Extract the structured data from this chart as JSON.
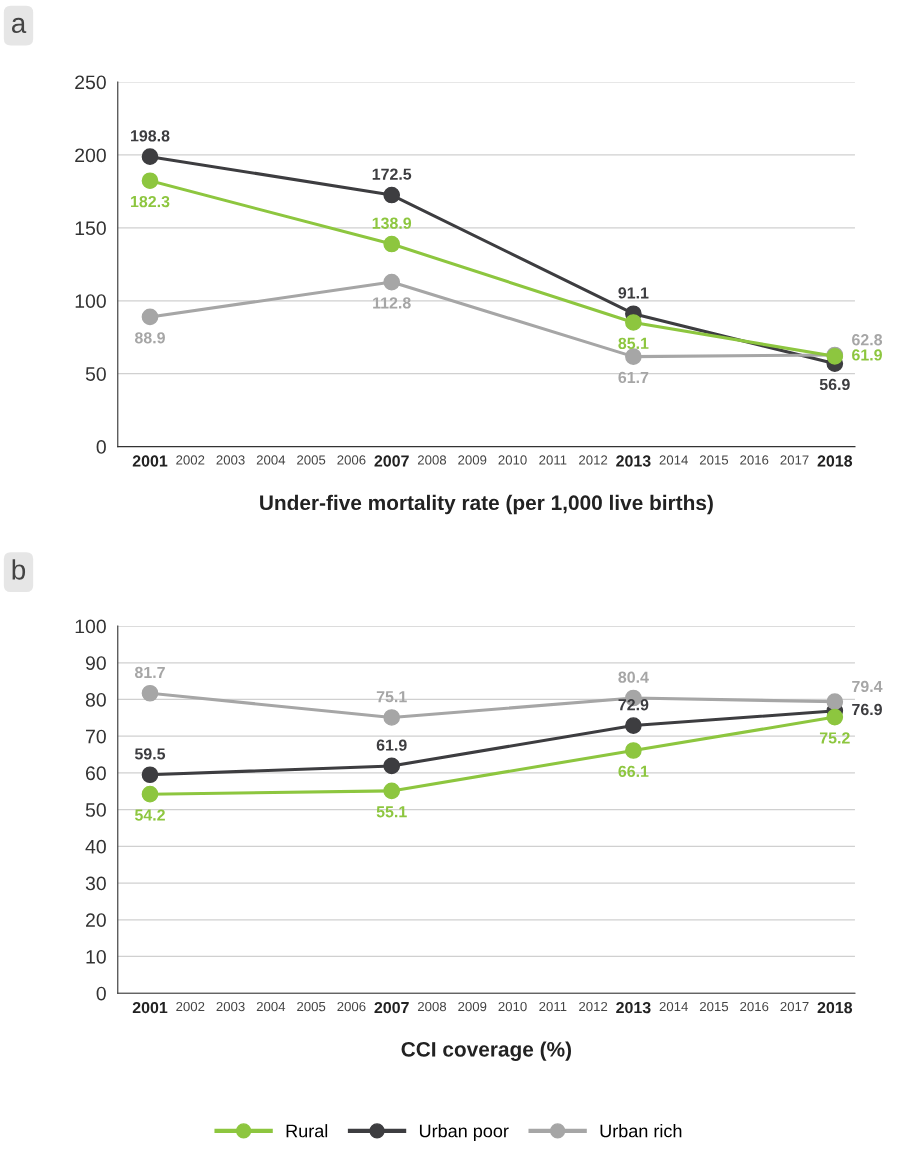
{
  "chart_data": [
    {
      "type": "line",
      "annotations": [
        "a"
      ],
      "xlabel": "Under-five mortality rate (per 1,000 live births)",
      "x": [
        2001,
        2007,
        2013,
        2018
      ],
      "xlim": [
        2000.2,
        2018.5
      ],
      "xticks": [
        2001,
        2002,
        2003,
        2004,
        2005,
        2006,
        2007,
        2008,
        2009,
        2010,
        2011,
        2012,
        2013,
        2014,
        2015,
        2016,
        2017,
        2018
      ],
      "ylim": [
        0,
        250
      ],
      "yticks": [
        0,
        50,
        100,
        150,
        200,
        250
      ],
      "grid": "y",
      "marker": "circle",
      "line_style": "solid",
      "data_labels": true,
      "legend": "bottom",
      "series": [
        {
          "name": "Rural",
          "color": "#8dc63f",
          "values": [
            182.3,
            138.9,
            85.1,
            61.9
          ]
        },
        {
          "name": "Urban poor",
          "color": "#3d3d40",
          "values": [
            198.8,
            172.5,
            91.1,
            56.9
          ]
        },
        {
          "name": "Urban rich",
          "color": "#a6a6a6",
          "values": [
            88.9,
            112.8,
            61.7,
            62.8
          ]
        }
      ]
    },
    {
      "type": "line",
      "annotations": [
        "b"
      ],
      "xlabel": "CCI coverage (%)",
      "x": [
        2001,
        2007,
        2013,
        2018
      ],
      "xlim": [
        2000.2,
        2018.5
      ],
      "xticks": [
        2001,
        2002,
        2003,
        2004,
        2005,
        2006,
        2007,
        2008,
        2009,
        2010,
        2011,
        2012,
        2013,
        2014,
        2015,
        2016,
        2017,
        2018
      ],
      "ylim": [
        0,
        100
      ],
      "yticks": [
        0,
        10,
        20,
        30,
        40,
        50,
        60,
        70,
        80,
        90,
        100
      ],
      "grid": "y",
      "marker": "circle",
      "line_style": "solid",
      "data_labels": true,
      "series": [
        {
          "color": "#8dc63f",
          "values": [
            54.2,
            55.1,
            66.1,
            75.2
          ]
        },
        {
          "color": "#3d3d40",
          "values": [
            59.5,
            61.9,
            72.9,
            76.9
          ]
        },
        {
          "color": "#a6a6a6",
          "values": [
            81.7,
            75.1,
            80.4,
            79.4
          ]
        }
      ]
    }
  ]
}
